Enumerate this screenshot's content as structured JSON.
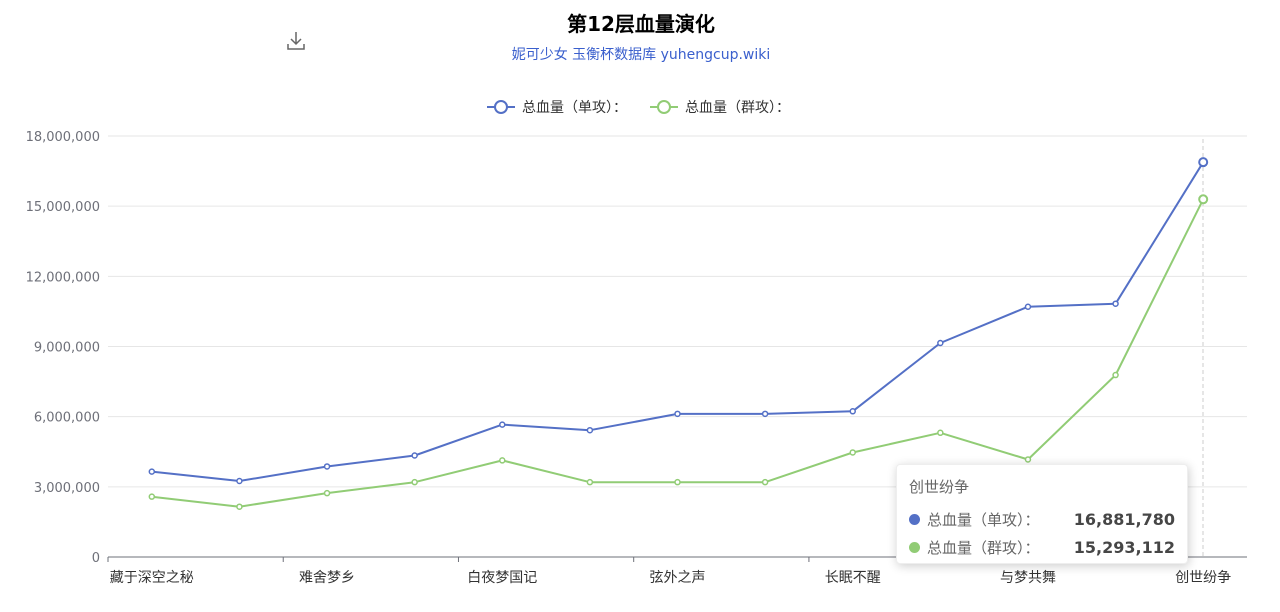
{
  "title": "第12层血量演化",
  "subtitle": "妮可少女 玉衡杯数据库 yuhengcup.wiki",
  "toolbox": {
    "icon": "download-icon"
  },
  "colors": {
    "single": "#5470c6",
    "group": "#91cc75"
  },
  "chart_data": {
    "type": "line",
    "categories": [
      "藏于深空之秘",
      "",
      "难舍梦乡",
      "",
      "白夜梦国记",
      "",
      "弦外之声",
      "",
      "长眠不醒",
      "",
      "与梦共舞",
      "",
      "创世纷争"
    ],
    "axis_labels": [
      "藏于深空之秘",
      "难舍梦乡",
      "白夜梦国记",
      "弦外之声",
      "长眠不醒",
      "与梦共舞",
      "创世纷争"
    ],
    "y_tick_labels": [
      "0",
      "3,000,000",
      "6,000,000",
      "9,000,000",
      "12,000,000",
      "15,000,000",
      "18,000,000"
    ],
    "ylim": [
      0,
      18000000
    ],
    "ystep": 3000000,
    "grid": true,
    "legend_position": "top-center",
    "series": [
      {
        "name": "总血量（单攻）：",
        "values": [
          3650000,
          3250000,
          3870000,
          4340000,
          5660000,
          5420000,
          6120000,
          6120000,
          6230000,
          9150000,
          10700000,
          10830000,
          16881780
        ]
      },
      {
        "name": "总血量（群攻）：",
        "values": [
          2580000,
          2150000,
          2730000,
          3200000,
          4130000,
          3200000,
          3200000,
          3200000,
          4470000,
          5310000,
          4170000,
          7780000,
          15293112
        ]
      }
    ],
    "tooltip": {
      "title": "创世纷争",
      "rows": [
        {
          "name": "总血量（单攻）：",
          "value": "16,881,780"
        },
        {
          "name": "总血量（群攻）：",
          "value": "15,293,112"
        }
      ]
    }
  }
}
